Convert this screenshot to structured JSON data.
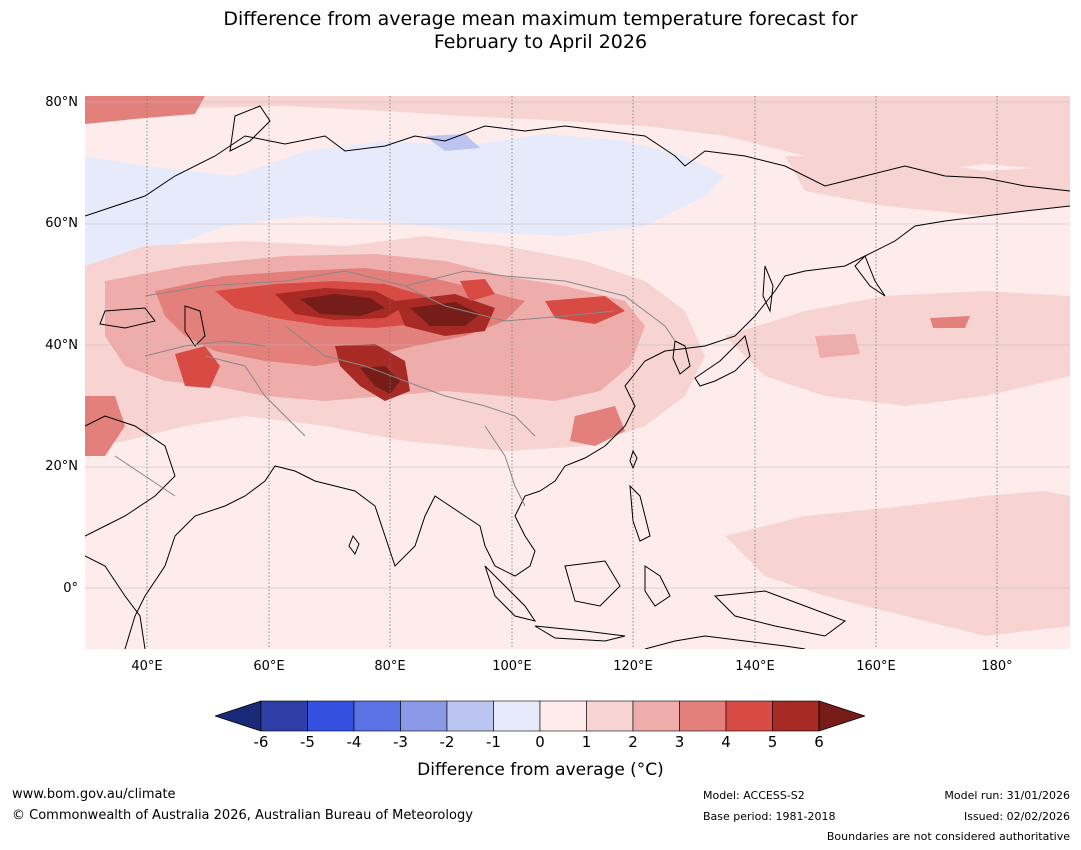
{
  "title_line1": "Difference from average mean maximum temperature forecast for",
  "title_line2": "February to April 2026",
  "map": {
    "lat_labels": [
      "80°N",
      "60°N",
      "40°N",
      "20°N",
      "0°"
    ],
    "lon_labels": [
      "40°E",
      "60°E",
      "80°E",
      "100°E",
      "120°E",
      "140°E",
      "160°E",
      "180°"
    ],
    "lat_range": [
      -10,
      80
    ],
    "lon_range": [
      30,
      192
    ],
    "gridlines": "dotted"
  },
  "colorbar": {
    "ticks": [
      "-6",
      "-5",
      "-4",
      "-3",
      "-2",
      "-1",
      "0",
      "1",
      "2",
      "3",
      "4",
      "5",
      "6"
    ],
    "colors": [
      "#2e3fa8",
      "#3350e0",
      "#5b72e4",
      "#8a9ae8",
      "#bcc4f2",
      "#e6eafa",
      "#fdeceb",
      "#f7d3d2",
      "#eeadab",
      "#e3807c",
      "#d84a44",
      "#a82a24"
    ],
    "low_extend_color": "#1a2a78",
    "high_extend_color": "#761d1a",
    "label": "Difference from average (°C)"
  },
  "footer": {
    "website": "www.bom.gov.au/climate",
    "copyright": "© Commonwealth of Australia 2026, Australian Bureau of Meteorology",
    "model": "Model: ACCESS-S2",
    "base_period": "Base period: 1981-2018",
    "model_run": "Model run: 31/01/2026",
    "issued": "Issued: 02/02/2026",
    "disclaimer": "Boundaries are not considered authoritative"
  }
}
